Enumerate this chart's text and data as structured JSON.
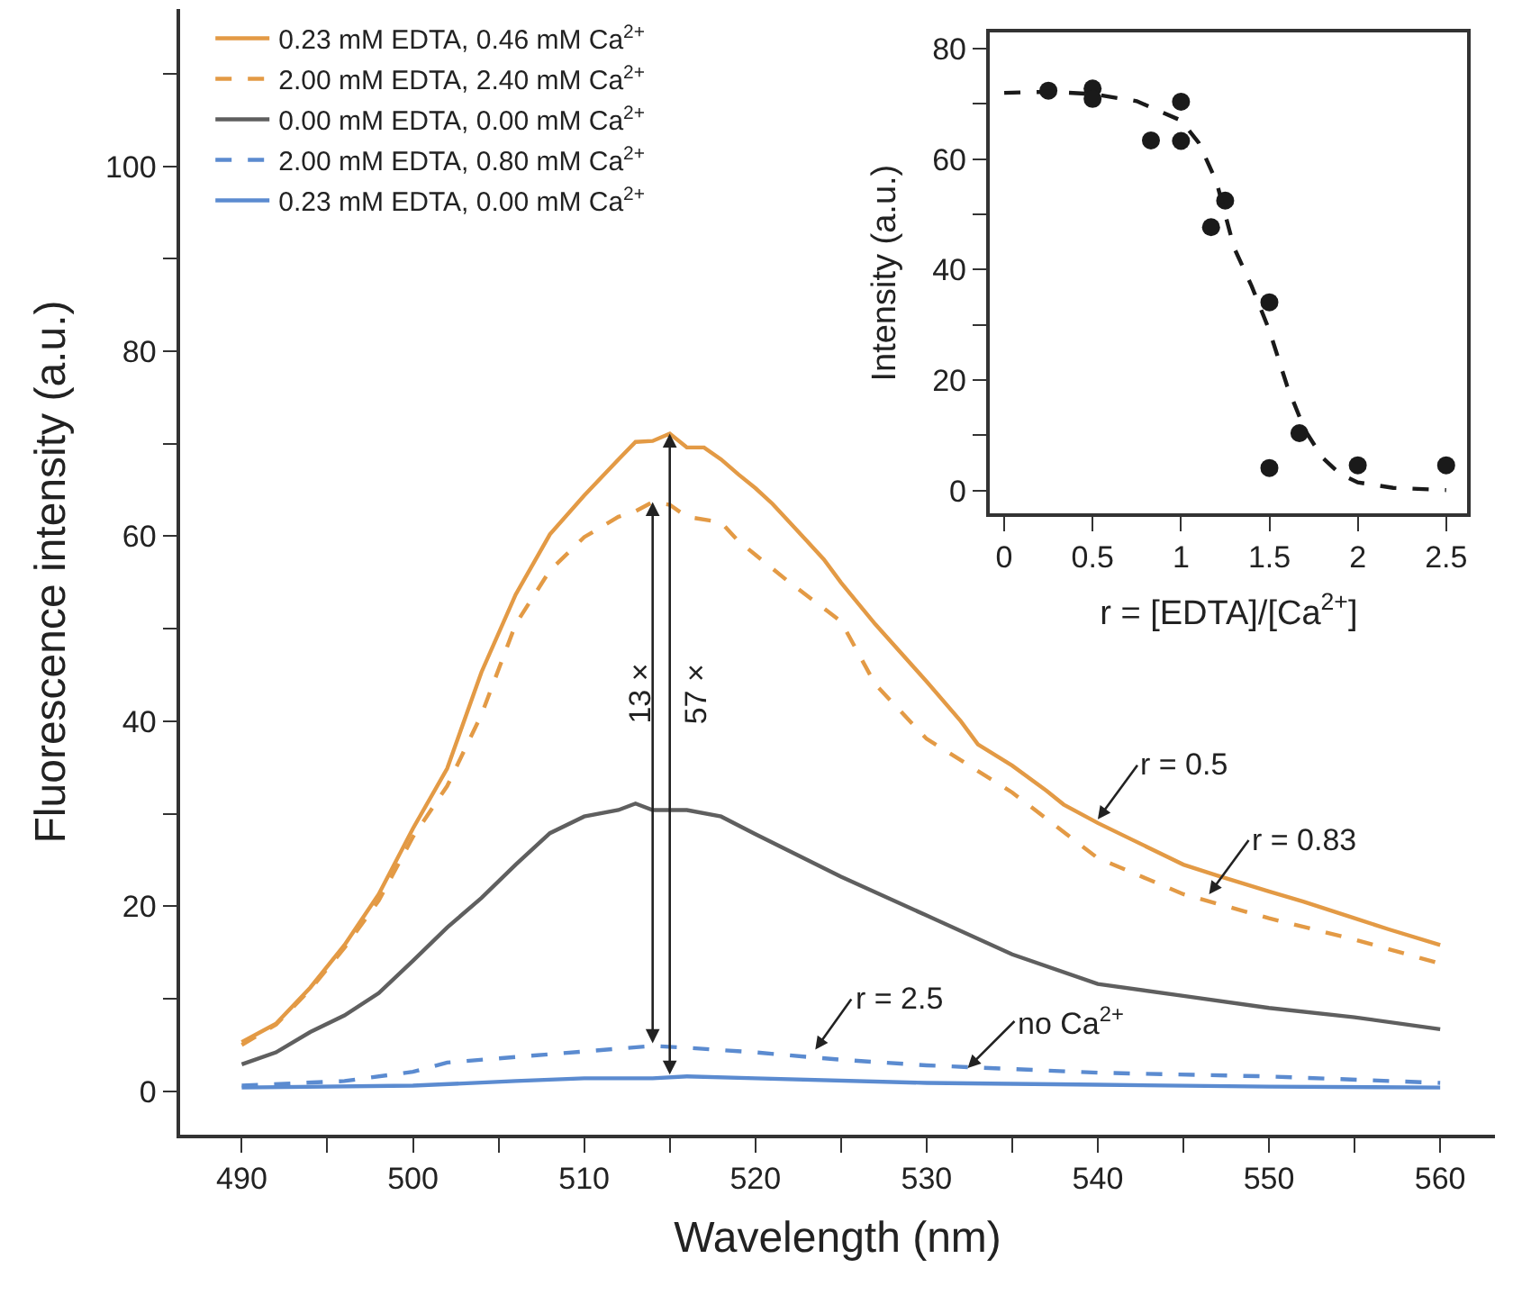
{
  "chart_data": [
    {
      "type": "line",
      "xlabel": "Wavelength (nm)",
      "ylabel": "Fluorescence intensity (a.u.)",
      "xlim": [
        486.4,
        563.2
      ],
      "ylim": [
        -4.7,
        117
      ],
      "xticks": [
        490,
        {
          "value": 495,
          "label": null
        },
        500,
        {
          "value": 505,
          "label": null
        },
        510,
        {
          "value": 515,
          "label": null
        },
        520,
        {
          "value": 525,
          "label": null
        },
        530,
        {
          "value": 535,
          "label": null
        },
        540,
        {
          "value": 545,
          "label": null
        },
        550,
        {
          "value": 555,
          "label": null
        },
        560
      ],
      "yticks": [
        0,
        {
          "value": 10,
          "label": null
        },
        20,
        {
          "value": 30,
          "label": null
        },
        40,
        {
          "value": 50,
          "label": null
        },
        60,
        {
          "value": 70,
          "label": null
        },
        80,
        {
          "value": 90,
          "label": null
        },
        100,
        {
          "value": 110,
          "label": null
        }
      ],
      "legend": "top left",
      "series": [
        {
          "name": "0.23 mM EDTA, 0.46 mM Ca$^{2+}$",
          "color": "#e39a45",
          "line_style": "solid",
          "x": [
            490,
            492,
            494,
            496,
            498,
            500,
            502,
            504,
            506,
            508,
            510,
            512,
            513,
            514,
            515,
            516,
            517,
            518,
            519,
            520,
            521,
            522,
            523,
            524,
            525,
            527,
            530,
            532,
            533,
            535,
            537,
            538,
            540,
            542,
            545,
            547,
            550,
            552,
            555,
            557,
            560
          ],
          "values": [
            5.3,
            7.3,
            11.2,
            15.8,
            21.3,
            28.4,
            34.9,
            45.3,
            53.7,
            60.2,
            64.4,
            68.3,
            70.2,
            70.3,
            71.1,
            69.6,
            69.6,
            68.3,
            66.7,
            65.2,
            63.5,
            61.5,
            59.5,
            57.5,
            55.0,
            50.5,
            44.3,
            40.0,
            37.5,
            35.2,
            32.5,
            31.0,
            29.0,
            27.2,
            24.5,
            23.3,
            21.6,
            20.5,
            18.7,
            17.5,
            15.8
          ]
        },
        {
          "name": "2.00 mM EDTA, 2.40 mM Ca$^{2+}$",
          "color": "#e39a45",
          "line_style": "dashed",
          "x": [
            490,
            492,
            494,
            496,
            498,
            500,
            502,
            504,
            506,
            508,
            510,
            512,
            513,
            514,
            515,
            516,
            518,
            519,
            520,
            522,
            525,
            527,
            530,
            535,
            540,
            545,
            550,
            555,
            560
          ],
          "values": [
            5.0,
            7.2,
            11.0,
            15.5,
            20.6,
            27.5,
            33.0,
            40.7,
            50.5,
            56.3,
            59.9,
            62.1,
            62.7,
            63.7,
            63.4,
            62.1,
            61.5,
            59.5,
            58.0,
            55.0,
            50.8,
            44.0,
            38.1,
            32.3,
            25.2,
            21.3,
            18.7,
            16.4,
            13.8
          ]
        },
        {
          "name": "0.00 mM EDTA, 0.00 mM Ca$^{2+}$",
          "color": "#5f5f5f",
          "line_style": "solid",
          "x": [
            490,
            492,
            494,
            496,
            498,
            500,
            502,
            504,
            506,
            508,
            510,
            512,
            513,
            514,
            516,
            518,
            520,
            525,
            530,
            535,
            540,
            545,
            550,
            555,
            560
          ],
          "values": [
            2.9,
            4.2,
            6.4,
            8.2,
            10.6,
            14.1,
            17.7,
            20.9,
            24.5,
            27.9,
            29.7,
            30.4,
            31.1,
            30.4,
            30.4,
            29.7,
            27.8,
            23.2,
            19.0,
            14.8,
            11.6,
            10.3,
            9.0,
            8.0,
            6.7
          ]
        },
        {
          "name": "2.00 mM EDTA, 0.80 mM Ca$^{2+}$",
          "color": "#5b8bd0",
          "line_style": "dashed",
          "x": [
            490,
            496,
            500,
            502,
            506,
            510,
            514,
            516,
            520,
            525,
            530,
            535,
            540,
            550,
            560
          ],
          "values": [
            0.6,
            1.1,
            2.1,
            3.1,
            3.7,
            4.3,
            4.9,
            4.7,
            4.2,
            3.4,
            2.8,
            2.4,
            2.0,
            1.6,
            0.9
          ]
        },
        {
          "name": "0.23 mM EDTA, 0.00 mM Ca$^{2+}$",
          "color": "#5b8bd0",
          "line_style": "solid",
          "x": [
            490,
            500,
            506,
            510,
            514,
            516,
            520,
            530,
            540,
            550,
            560
          ],
          "values": [
            0.4,
            0.6,
            1.1,
            1.4,
            1.4,
            1.6,
            1.4,
            0.9,
            0.7,
            0.5,
            0.4
          ]
        }
      ],
      "annotations": [
        "13 ×",
        "57 ×",
        {
          "text": "r = 0.5",
          "x": 540,
          "y": 29.4
        },
        {
          "text": "r = 0.83",
          "x": 546.5,
          "y": 21.3
        },
        {
          "text": "r = 2.5",
          "x": 523.5,
          "y": 4.5
        },
        {
          "text": "no Ca$^{2+}$",
          "x": 532.4,
          "y": 2.5
        }
      ]
    },
    {
      "type": "scatter",
      "xlabel": "r = [EDTA]/[Ca$^{2+}$]",
      "ylabel": "Intensity (a.u.)",
      "xlim": [
        -0.08,
        2.62
      ],
      "ylim": [
        -4.1,
        82.9
      ],
      "xticks": [
        0,
        0.5,
        1,
        1.5,
        2,
        2.5
      ],
      "yticks": [
        0,
        {
          "value": 10,
          "label": null
        },
        20,
        {
          "value": 30,
          "label": null
        },
        40,
        {
          "value": 50,
          "label": null
        },
        60,
        {
          "value": 70,
          "label": null
        },
        80
      ],
      "series": [
        {
          "type": "scatter",
          "color": "#1a1a1a",
          "marker": "circle",
          "x": [
            0.25,
            0.5,
            0.5,
            0.83,
            1.0,
            1.0,
            1.17,
            1.25,
            1.5,
            1.5,
            1.67,
            2.0,
            2.5
          ],
          "values": [
            72.4,
            72.8,
            70.9,
            63.4,
            70.4,
            63.3,
            47.7,
            52.5,
            34.1,
            4.1,
            10.4,
            4.6,
            4.6
          ]
        },
        {
          "type": "line",
          "color": "#1a1a1a",
          "line_style": "dashed",
          "x": [
            0,
            0.25,
            0.5,
            0.75,
            1.0,
            1.1,
            1.2,
            1.3,
            1.4,
            1.5,
            1.6,
            1.7,
            1.8,
            1.9,
            2.0,
            2.2,
            2.5
          ],
          "values": [
            72,
            72.2,
            71.8,
            70.5,
            67,
            63,
            56,
            44,
            37,
            29,
            19,
            11,
            6,
            3,
            1.5,
            0.5,
            0.1
          ]
        }
      ]
    }
  ]
}
